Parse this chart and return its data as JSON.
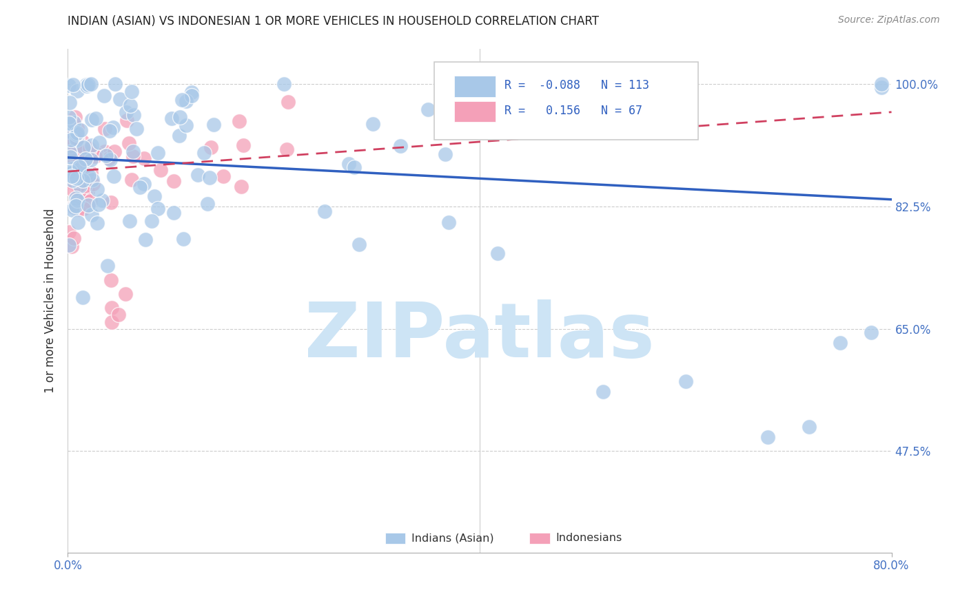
{
  "title": "INDIAN (ASIAN) VS INDONESIAN 1 OR MORE VEHICLES IN HOUSEHOLD CORRELATION CHART",
  "source": "Source: ZipAtlas.com",
  "ylabel": "1 or more Vehicles in Household",
  "legend_label1": "Indians (Asian)",
  "legend_label2": "Indonesians",
  "blue_color": "#a8c8e8",
  "blue_edge_color": "#7aafd4",
  "pink_color": "#f4a0b8",
  "pink_edge_color": "#e07090",
  "blue_line_color": "#3060c0",
  "pink_line_color": "#d04060",
  "watermark_color": "#cde4f5",
  "watermark": "ZIPatlas",
  "blue_R": -0.088,
  "blue_N": 113,
  "pink_R": 0.156,
  "pink_N": 67,
  "xmin": 0.0,
  "xmax": 0.8,
  "ymin": 0.33,
  "ymax": 1.05,
  "ytick_vals": [
    0.475,
    0.65,
    0.825,
    1.0
  ],
  "ytick_labels": [
    "47.5%",
    "65.0%",
    "82.5%",
    "100.0%"
  ],
  "xtick_vals": [
    0.0,
    0.8
  ],
  "xtick_labels": [
    "0.0%",
    "80.0%"
  ],
  "blue_line_x0": 0.0,
  "blue_line_x1": 0.8,
  "blue_line_y0": 0.895,
  "blue_line_y1": 0.835,
  "pink_line_x0": 0.0,
  "pink_line_x1": 0.8,
  "pink_line_y0": 0.875,
  "pink_line_y1": 0.96,
  "blue_seed": 42,
  "pink_seed": 7
}
